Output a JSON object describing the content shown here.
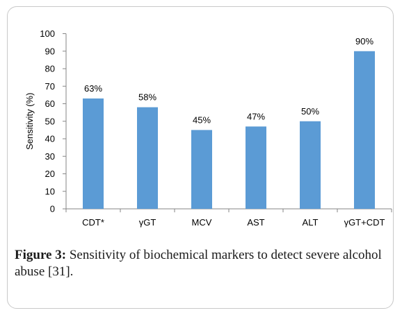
{
  "chart_data": {
    "type": "bar",
    "categories": [
      "CDT*",
      "γGT",
      "MCV",
      "AST",
      "ALT",
      "γGT+CDT"
    ],
    "values": [
      63,
      58,
      45,
      47,
      50,
      90
    ],
    "data_labels": [
      "63%",
      "58%",
      "45%",
      "47%",
      "50%",
      "90%"
    ],
    "title": "",
    "xlabel": "",
    "ylabel": "Sensitivity (%)",
    "ylim": [
      0,
      100
    ],
    "yticks": [
      0,
      10,
      20,
      30,
      40,
      50,
      60,
      70,
      80,
      90,
      100
    ],
    "grid": false,
    "legend": "none",
    "bar_color": "#5b9bd5"
  },
  "caption": {
    "lead": "Figure 3:",
    "text": " Sensitivity of biochemical markers to detect severe alcohol abuse [31]."
  }
}
